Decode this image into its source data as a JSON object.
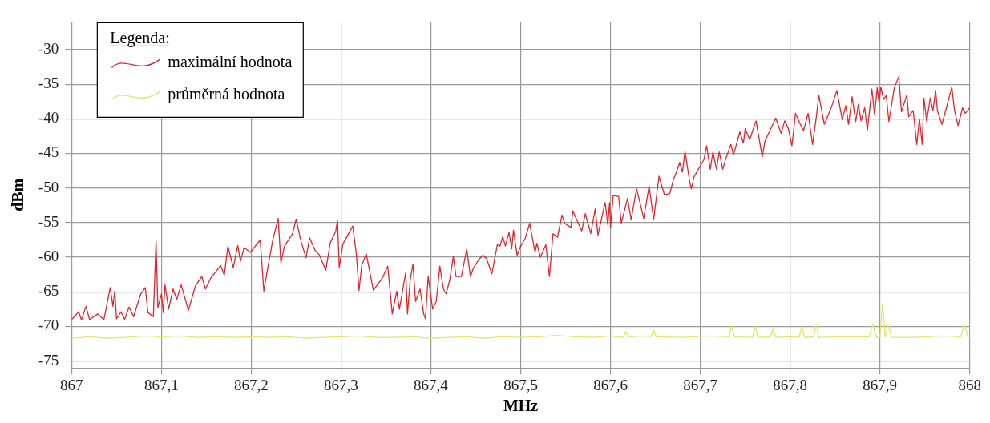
{
  "chart_data": {
    "type": "line",
    "xlabel": "MHz",
    "ylabel": "dBm",
    "legend_title": "Legenda:",
    "legend": "top left",
    "grid": true,
    "line_style": "solid",
    "xlim": [
      867,
      868
    ],
    "ylim": [
      -76,
      -26
    ],
    "xticks": [
      867,
      {
        "value": 867.1,
        "label": "867,1"
      },
      {
        "value": 867.2,
        "label": "867,2"
      },
      {
        "value": 867.3,
        "label": "867,3"
      },
      {
        "value": 867.4,
        "label": "867,4"
      },
      {
        "value": 867.5,
        "label": "867,5"
      },
      {
        "value": 867.6,
        "label": "867,6"
      },
      {
        "value": 867.7,
        "label": "867,7"
      },
      {
        "value": 867.8,
        "label": "867,8"
      },
      {
        "value": 867.9,
        "label": "867,9"
      },
      868
    ],
    "yticks": [
      -75,
      -70,
      -65,
      -60,
      -55,
      -50,
      -45,
      -40,
      -35,
      -30
    ],
    "series": [
      {
        "name": "maximální hodnota",
        "color": "#e8222a",
        "x": [
          867.0,
          867.008,
          867.011,
          867.016,
          867.02,
          867.029,
          867.036,
          867.043,
          867.046,
          867.048,
          867.05,
          867.055,
          867.059,
          867.064,
          867.069,
          867.077,
          867.082,
          867.085,
          867.091,
          867.094,
          867.096,
          867.1,
          867.102,
          867.104,
          867.108,
          867.113,
          867.117,
          867.122,
          867.13,
          867.138,
          867.145,
          867.149,
          867.155,
          867.166,
          867.17,
          867.174,
          867.18,
          867.185,
          867.188,
          867.192,
          867.199,
          867.21,
          867.214,
          867.217,
          867.224,
          867.23,
          867.233,
          867.237,
          867.246,
          867.25,
          867.255,
          867.261,
          867.265,
          867.271,
          867.276,
          867.283,
          867.288,
          867.294,
          867.296,
          867.298,
          867.302,
          867.313,
          867.317,
          867.32,
          867.323,
          867.328,
          867.336,
          867.346,
          867.352,
          867.357,
          867.362,
          867.365,
          867.372,
          867.374,
          867.377,
          867.38,
          867.383,
          867.388,
          867.392,
          867.394,
          867.397,
          867.402,
          867.406,
          867.41,
          867.414,
          867.417,
          867.421,
          867.425,
          867.428,
          867.434,
          867.44,
          867.444,
          867.447,
          867.453,
          867.458,
          867.462,
          867.468,
          867.474,
          867.477,
          867.48,
          867.483,
          867.487,
          867.49,
          867.492,
          867.496,
          867.5,
          867.505,
          867.51,
          867.516,
          867.518,
          867.522,
          867.528,
          867.532,
          867.536,
          867.541,
          867.546,
          867.549,
          867.556,
          867.558,
          867.568,
          867.572,
          867.578,
          867.583,
          867.586,
          867.594,
          867.597,
          867.599,
          867.6,
          867.603,
          867.609,
          867.612,
          867.619,
          867.623,
          867.629,
          867.637,
          867.643,
          867.648,
          867.654,
          867.66,
          867.666,
          867.67,
          867.674,
          867.677,
          867.68,
          867.683,
          867.688,
          867.69,
          867.693,
          867.699,
          867.704,
          867.707,
          867.711,
          867.714,
          867.718,
          867.721,
          867.725,
          867.728,
          867.734,
          867.737,
          867.744,
          867.748,
          867.75,
          867.755,
          867.762,
          867.769,
          867.772,
          867.784,
          867.79,
          867.794,
          867.798,
          867.802,
          867.806,
          867.811,
          867.815,
          867.82,
          867.825,
          867.829,
          867.832,
          867.838,
          867.846,
          867.852,
          867.858,
          867.862,
          867.865,
          867.869,
          867.873,
          867.876,
          867.879,
          867.883,
          867.886,
          867.891,
          867.894,
          867.897,
          867.899,
          867.901,
          867.904,
          867.907,
          867.91,
          867.916,
          867.921,
          867.924,
          867.93,
          867.932,
          867.937,
          867.941,
          867.944,
          867.947,
          867.949,
          867.952,
          867.956,
          867.959,
          867.962,
          867.964,
          867.969,
          867.974,
          867.98,
          867.983,
          867.987,
          867.992,
          867.995,
          868.0
        ],
        "values": [
          -69.0,
          -67.9,
          -69.1,
          -67.1,
          -69.0,
          -68.2,
          -69.0,
          -64.4,
          -67.1,
          -64.9,
          -68.9,
          -67.9,
          -69.0,
          -67.2,
          -68.6,
          -65.3,
          -64.4,
          -68.0,
          -68.6,
          -57.6,
          -67.3,
          -65.3,
          -68.0,
          -64.0,
          -67.5,
          -64.6,
          -66.1,
          -64.0,
          -67.7,
          -64.1,
          -62.8,
          -64.6,
          -63.0,
          -61.2,
          -62.6,
          -58.4,
          -61.5,
          -58.3,
          -60.6,
          -58.6,
          -59.3,
          -57.5,
          -64.9,
          -62.6,
          -57.5,
          -54.4,
          -60.8,
          -58.4,
          -56.6,
          -54.5,
          -57.5,
          -60.1,
          -57.2,
          -59.0,
          -59.7,
          -61.9,
          -57.9,
          -56.3,
          -54.6,
          -61.5,
          -58.1,
          -55.5,
          -59.5,
          -64.8,
          -61.2,
          -59.5,
          -64.8,
          -63.0,
          -61.3,
          -68.2,
          -64.9,
          -67.5,
          -62.2,
          -68.2,
          -63.3,
          -61.0,
          -66.4,
          -64.6,
          -68.2,
          -68.9,
          -62.8,
          -67.5,
          -66.4,
          -61.3,
          -64.6,
          -65.3,
          -63.3,
          -59.9,
          -62.8,
          -62.8,
          -58.8,
          -62.8,
          -61.7,
          -60.4,
          -59.7,
          -60.2,
          -62.4,
          -58.2,
          -58.4,
          -57.0,
          -58.4,
          -56.4,
          -58.8,
          -56.1,
          -59.7,
          -58.4,
          -57.3,
          -55.1,
          -59.3,
          -58.0,
          -60.0,
          -58.2,
          -62.8,
          -56.6,
          -57.1,
          -53.9,
          -55.1,
          -55.7,
          -53.3,
          -56.2,
          -53.7,
          -56.6,
          -53.0,
          -56.8,
          -52.1,
          -55.3,
          -52.1,
          -55.7,
          -51.1,
          -51.2,
          -55.1,
          -51.5,
          -54.6,
          -50.1,
          -54.4,
          -49.7,
          -54.6,
          -48.3,
          -51.0,
          -50.8,
          -48.8,
          -47.5,
          -46.3,
          -47.7,
          -44.7,
          -49.0,
          -50.1,
          -48.4,
          -47.0,
          -45.9,
          -43.9,
          -47.3,
          -44.8,
          -47.3,
          -44.8,
          -47.3,
          -45.9,
          -43.7,
          -45.2,
          -41.9,
          -43.5,
          -41.4,
          -43.0,
          -40.3,
          -45.5,
          -43.2,
          -39.9,
          -42.1,
          -40.3,
          -41.4,
          -43.9,
          -39.2,
          -40.7,
          -41.7,
          -39.2,
          -43.7,
          -39.9,
          -36.6,
          -40.8,
          -38.3,
          -35.9,
          -40.1,
          -38.1,
          -40.8,
          -36.8,
          -40.4,
          -37.9,
          -40.3,
          -38.4,
          -41.7,
          -35.7,
          -39.4,
          -35.5,
          -37.7,
          -35.4,
          -37.2,
          -36.6,
          -40.4,
          -35.5,
          -33.9,
          -39.0,
          -36.5,
          -39.7,
          -38.8,
          -43.7,
          -40.0,
          -43.7,
          -37.0,
          -40.4,
          -37.0,
          -38.8,
          -35.9,
          -38.8,
          -40.8,
          -38.4,
          -35.4,
          -38.8,
          -41.0,
          -38.4,
          -39.2,
          -38.4
        ]
      },
      {
        "name": "průměrná hodnota",
        "color": "#e4e46a",
        "x": [
          867.0,
          867.02,
          867.04,
          867.06,
          867.08,
          867.1,
          867.12,
          867.14,
          867.16,
          867.18,
          867.2,
          867.22,
          867.24,
          867.26,
          867.28,
          867.3,
          867.32,
          867.34,
          867.36,
          867.38,
          867.4,
          867.42,
          867.44,
          867.46,
          867.48,
          867.5,
          867.52,
          867.54,
          867.56,
          867.58,
          867.6,
          867.614,
          867.617,
          867.62,
          867.64,
          867.645,
          867.648,
          867.651,
          867.68,
          867.71,
          867.732,
          867.735,
          867.738,
          867.758,
          867.761,
          867.764,
          867.778,
          867.781,
          867.784,
          867.8,
          867.81,
          867.813,
          867.816,
          867.826,
          867.829,
          867.832,
          867.86,
          867.888,
          867.892,
          867.896,
          867.9,
          867.903,
          867.906,
          867.909,
          867.913,
          867.94,
          867.97,
          867.99,
          867.994,
          867.998,
          868.0
        ],
        "values": [
          -71.7,
          -71.5,
          -71.7,
          -71.6,
          -71.4,
          -71.5,
          -71.4,
          -71.6,
          -71.5,
          -71.6,
          -71.5,
          -71.6,
          -71.5,
          -71.7,
          -71.6,
          -71.5,
          -71.4,
          -71.6,
          -71.6,
          -71.5,
          -71.7,
          -71.6,
          -71.5,
          -71.7,
          -71.5,
          -71.6,
          -71.5,
          -71.3,
          -71.5,
          -71.6,
          -71.4,
          -71.6,
          -70.8,
          -71.5,
          -71.4,
          -71.5,
          -70.5,
          -71.5,
          -71.6,
          -71.4,
          -71.5,
          -70.0,
          -71.5,
          -71.6,
          -70.0,
          -71.6,
          -71.5,
          -70.4,
          -71.6,
          -71.5,
          -71.6,
          -70.0,
          -71.6,
          -71.5,
          -69.8,
          -71.6,
          -71.5,
          -71.5,
          -69.7,
          -71.6,
          -71.5,
          -66.6,
          -71.6,
          -69.8,
          -71.6,
          -71.6,
          -71.4,
          -71.5,
          -69.7,
          -71.5,
          -71.5
        ]
      }
    ]
  }
}
